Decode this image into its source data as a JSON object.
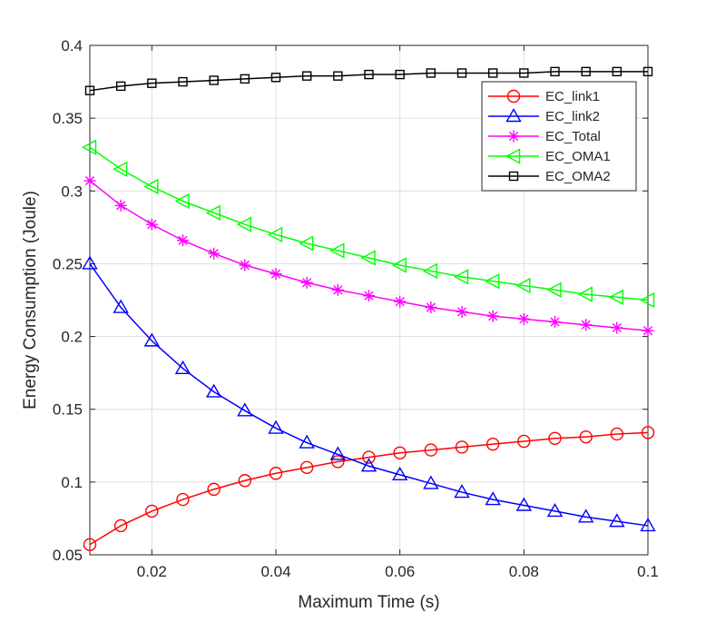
{
  "chart_data": {
    "type": "line",
    "title": "",
    "xlabel": "Maximum Time (s)",
    "ylabel": "Energy Consumption (Joule)",
    "xlim": [
      0.01,
      0.1
    ],
    "ylim": [
      0.05,
      0.4
    ],
    "grid": true,
    "legend_position": "top-right",
    "xticks": [
      0.02,
      0.04,
      0.06,
      0.08,
      0.1
    ],
    "xtick_labels": [
      "0.02",
      "0.04",
      "0.06",
      "0.08",
      "0.1"
    ],
    "yticks": [
      0.05,
      0.1,
      0.15,
      0.2,
      0.25,
      0.3,
      0.35,
      0.4
    ],
    "ytick_labels": [
      "0.05",
      "0.1",
      "0.15",
      "0.2",
      "0.25",
      "0.3",
      "0.35",
      "0.4"
    ],
    "x": [
      0.01,
      0.015,
      0.02,
      0.025,
      0.03,
      0.035,
      0.04,
      0.045,
      0.05,
      0.055,
      0.06,
      0.065,
      0.07,
      0.075,
      0.08,
      0.085,
      0.09,
      0.095,
      0.1
    ],
    "series": [
      {
        "name": "EC_link1",
        "color": "#ff0000",
        "marker": "circle",
        "values": [
          0.057,
          0.07,
          0.08,
          0.088,
          0.095,
          0.101,
          0.106,
          0.11,
          0.114,
          0.117,
          0.12,
          0.122,
          0.124,
          0.126,
          0.128,
          0.13,
          0.131,
          0.133,
          0.134
        ]
      },
      {
        "name": "EC_link2",
        "color": "#0000ff",
        "marker": "triangle-up",
        "values": [
          0.25,
          0.22,
          0.197,
          0.178,
          0.162,
          0.149,
          0.137,
          0.127,
          0.119,
          0.111,
          0.105,
          0.099,
          0.093,
          0.088,
          0.084,
          0.08,
          0.076,
          0.073,
          0.07
        ]
      },
      {
        "name": "EC_Total",
        "color": "#ff00ff",
        "marker": "asterisk",
        "values": [
          0.307,
          0.29,
          0.277,
          0.266,
          0.257,
          0.249,
          0.243,
          0.237,
          0.232,
          0.228,
          0.224,
          0.22,
          0.217,
          0.214,
          0.212,
          0.21,
          0.208,
          0.206,
          0.204
        ]
      },
      {
        "name": "EC_OMA1",
        "color": "#00ff00",
        "marker": "triangle-left",
        "values": [
          0.33,
          0.315,
          0.303,
          0.293,
          0.285,
          0.277,
          0.27,
          0.264,
          0.259,
          0.254,
          0.249,
          0.245,
          0.241,
          0.238,
          0.235,
          0.232,
          0.229,
          0.227,
          0.225
        ]
      },
      {
        "name": "EC_OMA2",
        "color": "#000000",
        "marker": "square",
        "values": [
          0.369,
          0.372,
          0.374,
          0.375,
          0.376,
          0.377,
          0.378,
          0.379,
          0.379,
          0.38,
          0.38,
          0.381,
          0.381,
          0.381,
          0.381,
          0.382,
          0.382,
          0.382,
          0.382
        ]
      }
    ]
  }
}
